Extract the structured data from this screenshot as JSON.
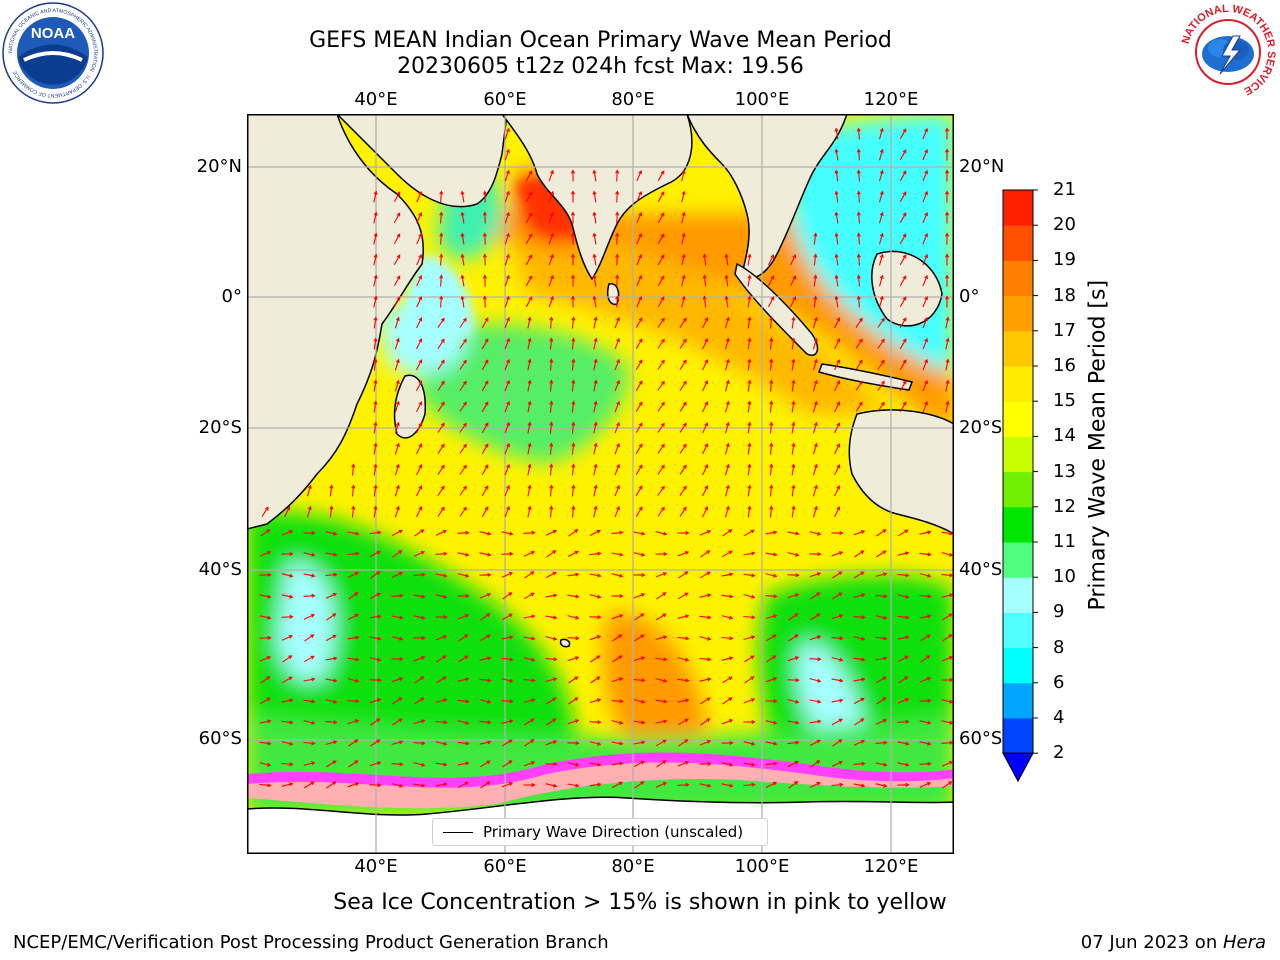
{
  "title_line1": "GEFS MEAN Indian Ocean Primary Wave Mean Period",
  "title_line2": "20230605 t12z 024h fcst   Max: 19.56",
  "lon_ticks": [
    "40°E",
    "60°E",
    "80°E",
    "100°E",
    "120°E"
  ],
  "lat_ticks": [
    "20°N",
    "0°",
    "20°S",
    "40°S",
    "60°S"
  ],
  "legend_label": "Primary Wave Direction (unscaled)",
  "colorbar": {
    "label": "Primary Wave Mean Period [s]",
    "ticks": [
      "2",
      "4",
      "6",
      "8",
      "9",
      "10",
      "11",
      "12",
      "13",
      "14",
      "15",
      "16",
      "17",
      "18",
      "19",
      "20",
      "21"
    ],
    "colors": [
      "#0044ff",
      "#00a6ff",
      "#00ffff",
      "#50ffff",
      "#a6ffff",
      "#50ff80",
      "#00e600",
      "#70f000",
      "#c8ff00",
      "#ffff00",
      "#ffeb00",
      "#ffc800",
      "#ffa000",
      "#ff8000",
      "#ff5000",
      "#ff2000"
    ],
    "extend_color": "#0000ff"
  },
  "subtitle": "Sea Ice Concentration > 15% is shown in pink to yellow",
  "footer_left": "NCEP/EMC/Verification Post Processing Product Generation Branch",
  "footer_right_date": "07 Jun 2023 on ",
  "footer_right_host": "Hera",
  "logos": {
    "noaa": {
      "text": "NOAA",
      "ring_text": "NATIONAL OCEANIC AND ATMOSPHERIC ADMINISTRATION · U.S. DEPARTMENT OF COMMERCE"
    },
    "nws": {
      "ring_text": "NATIONAL WEATHER SERVICE"
    }
  },
  "colors": {
    "land": "#efedda",
    "arrow": "#ff0000",
    "sea_ice": "#ff00ff",
    "grid": "#b0b0b0"
  }
}
